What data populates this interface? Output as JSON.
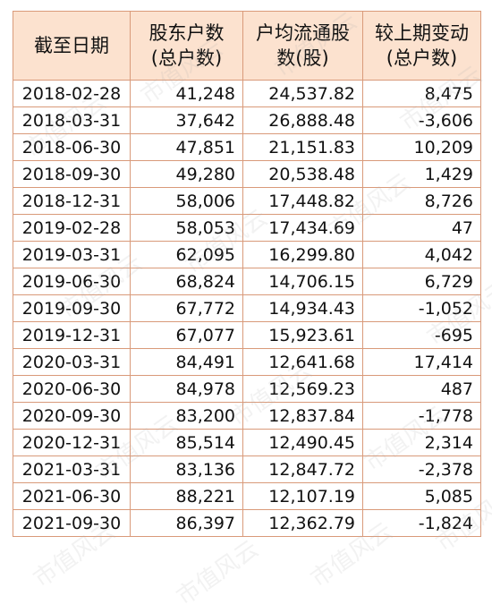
{
  "table": {
    "headers": [
      "截至日期",
      "股东户数\n(总户数)",
      "户均流通股\n数(股)",
      "较上期变动\n(总户数)"
    ],
    "rows": [
      [
        "2018-02-28",
        "41,248",
        "24,537.82",
        "8,475"
      ],
      [
        "2018-03-31",
        "37,642",
        "26,888.48",
        "-3,606"
      ],
      [
        "2018-06-30",
        "47,851",
        "21,151.83",
        "10,209"
      ],
      [
        "2018-09-30",
        "49,280",
        "20,538.48",
        "1,429"
      ],
      [
        "2018-12-31",
        "58,006",
        "17,448.82",
        "8,726"
      ],
      [
        "2019-02-28",
        "58,053",
        "17,434.69",
        "47"
      ],
      [
        "2019-03-31",
        "62,095",
        "16,299.80",
        "4,042"
      ],
      [
        "2019-06-30",
        "68,824",
        "14,706.15",
        "6,729"
      ],
      [
        "2019-09-30",
        "67,772",
        "14,934.43",
        "-1,052"
      ],
      [
        "2019-12-31",
        "67,077",
        "15,923.61",
        "-695"
      ],
      [
        "2020-03-31",
        "84,491",
        "12,641.68",
        "17,414"
      ],
      [
        "2020-06-30",
        "84,978",
        "12,569.23",
        "487"
      ],
      [
        "2020-09-30",
        "83,200",
        "12,837.84",
        "-1,778"
      ],
      [
        "2020-12-31",
        "85,514",
        "12,490.45",
        "2,314"
      ],
      [
        "2021-03-31",
        "83,136",
        "12,847.72",
        "-2,378"
      ],
      [
        "2021-06-30",
        "88,221",
        "12,107.19",
        "5,085"
      ],
      [
        "2021-09-30",
        "86,397",
        "12,362.79",
        "-1,824"
      ]
    ]
  },
  "watermark_text": "市值风云",
  "colors": {
    "header_background": "#fce2cf",
    "border": "#d99a7a",
    "text": "#111111"
  }
}
